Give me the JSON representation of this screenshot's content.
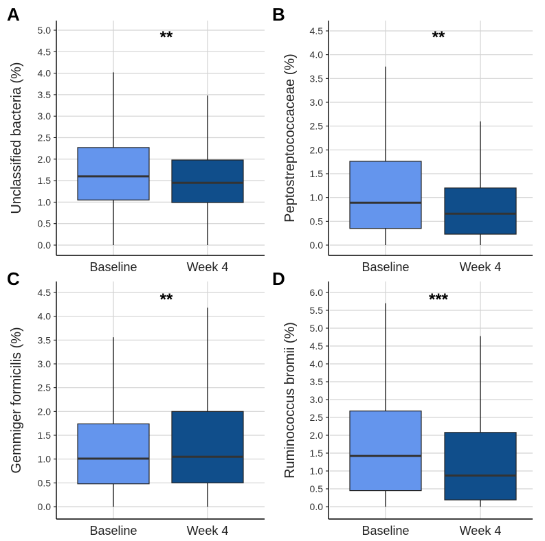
{
  "colors": {
    "baseline": "#6495ED",
    "week4": "#104E8B",
    "grid": "#D3D3D3",
    "median": "#333333",
    "axis": "#000000"
  },
  "chart_data": [
    {
      "panel": "A",
      "type": "boxplot",
      "ylabel": "Unclassified bacteria (%)",
      "significance": "**",
      "ylim": [
        0,
        5.0
      ],
      "yticks": [
        "0.0",
        "0.5",
        "1.0",
        "1.5",
        "2.0",
        "2.5",
        "3.0",
        "3.5",
        "4.0",
        "4.5",
        "5.0"
      ],
      "categories": [
        "Baseline",
        "Week 4"
      ],
      "boxes": [
        {
          "name": "Baseline",
          "min": 0.0,
          "q1": 1.05,
          "median": 1.6,
          "q3": 2.27,
          "max": 4.02
        },
        {
          "name": "Week 4",
          "min": 0.0,
          "q1": 0.99,
          "median": 1.45,
          "q3": 1.98,
          "max": 3.48
        }
      ]
    },
    {
      "panel": "B",
      "type": "boxplot",
      "ylabel": "Peptostreptococcaceae  (%)",
      "significance": "**",
      "ylim": [
        0,
        4.5
      ],
      "yticks": [
        "0.0",
        "0.5",
        "1.0",
        "1.5",
        "2.0",
        "2.5",
        "3.0",
        "3.5",
        "4.0",
        "4.5"
      ],
      "categories": [
        "Baseline",
        "Week 4"
      ],
      "boxes": [
        {
          "name": "Baseline",
          "min": 0.0,
          "q1": 0.35,
          "median": 0.89,
          "q3": 1.76,
          "max": 3.75
        },
        {
          "name": "Week 4",
          "min": 0.0,
          "q1": 0.23,
          "median": 0.66,
          "q3": 1.2,
          "max": 2.6
        }
      ]
    },
    {
      "panel": "C",
      "type": "boxplot",
      "ylabel": "Gemmiger formicilis (%)",
      "significance": "**",
      "ylim": [
        0,
        4.5
      ],
      "yticks": [
        "0.0",
        "0.5",
        "1.0",
        "1.5",
        "2.0",
        "2.5",
        "3.0",
        "3.5",
        "4.0",
        "4.5"
      ],
      "categories": [
        "Baseline",
        "Week 4"
      ],
      "boxes": [
        {
          "name": "Baseline",
          "min": 0.0,
          "q1": 0.48,
          "median": 1.01,
          "q3": 1.74,
          "max": 3.56
        },
        {
          "name": "Week 4",
          "min": 0.0,
          "q1": 0.5,
          "median": 1.05,
          "q3": 2.0,
          "max": 4.18
        }
      ]
    },
    {
      "panel": "D",
      "type": "boxplot",
      "ylabel": "Ruminococcus bromii (%)",
      "significance": "***",
      "ylim": [
        0,
        6.0
      ],
      "yticks": [
        "0.0",
        "0.5",
        "1.0",
        "1.5",
        "2.0",
        "2.5",
        "3.0",
        "3.5",
        "4.0",
        "4.5",
        "5.0",
        "5.5",
        "6.0"
      ],
      "categories": [
        "Baseline",
        "Week 4"
      ],
      "boxes": [
        {
          "name": "Baseline",
          "min": 0.0,
          "q1": 0.45,
          "median": 1.42,
          "q3": 2.68,
          "max": 5.7
        },
        {
          "name": "Week 4",
          "min": 0.0,
          "q1": 0.19,
          "median": 0.87,
          "q3": 2.08,
          "max": 4.78
        }
      ]
    }
  ]
}
